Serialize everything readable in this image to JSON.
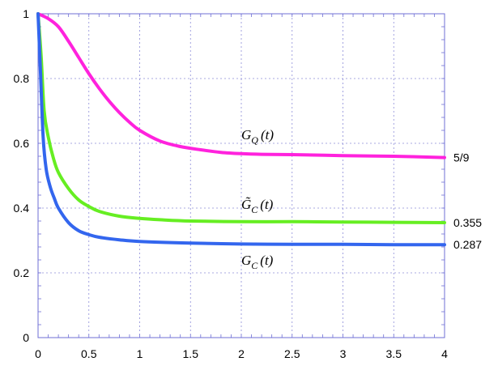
{
  "chart_data": {
    "type": "line",
    "title": "",
    "xlabel": "",
    "ylabel": "",
    "xlim": [
      0,
      4
    ],
    "ylim": [
      0,
      1
    ],
    "grid": true,
    "x_ticks": [
      "0",
      "0.5",
      "1",
      "1.5",
      "2",
      "2.5",
      "3",
      "3.5",
      "4"
    ],
    "y_ticks": [
      "0",
      "0.2",
      "0.4",
      "0.6",
      "0.8",
      "1"
    ],
    "series": [
      {
        "label": "G_Q(t)",
        "color": "#ff22dd",
        "end_label": "5/9",
        "x": [
          0,
          0.1,
          0.2,
          0.3,
          0.4,
          0.5,
          0.6,
          0.7,
          0.8,
          0.9,
          1.0,
          1.2,
          1.4,
          1.6,
          1.8,
          2.0,
          2.2,
          2.5,
          3.0,
          3.5,
          4.0
        ],
        "y": [
          1.0,
          0.985,
          0.96,
          0.915,
          0.865,
          0.815,
          0.77,
          0.73,
          0.695,
          0.665,
          0.64,
          0.607,
          0.59,
          0.58,
          0.572,
          0.568,
          0.566,
          0.565,
          0.562,
          0.56,
          0.556
        ]
      },
      {
        "label": "G̃_C(t)",
        "color": "#66ee22",
        "end_label": "0.355",
        "x": [
          0,
          0.03,
          0.06,
          0.1,
          0.15,
          0.2,
          0.3,
          0.4,
          0.5,
          0.6,
          0.8,
          1.0,
          1.2,
          1.5,
          2.0,
          2.5,
          3.0,
          3.5,
          4.0
        ],
        "y": [
          1.0,
          0.87,
          0.7,
          0.62,
          0.555,
          0.51,
          0.46,
          0.425,
          0.405,
          0.39,
          0.375,
          0.368,
          0.364,
          0.36,
          0.358,
          0.358,
          0.357,
          0.356,
          0.355
        ]
      },
      {
        "label": "G_C(t)",
        "color": "#3366ee",
        "end_label": "0.287",
        "x": [
          0,
          0.02,
          0.05,
          0.08,
          0.12,
          0.16,
          0.2,
          0.3,
          0.4,
          0.5,
          0.6,
          0.8,
          1.0,
          1.5,
          2.0,
          2.5,
          3.0,
          3.5,
          4.0
        ],
        "y": [
          1.0,
          0.85,
          0.62,
          0.52,
          0.465,
          0.43,
          0.4,
          0.355,
          0.33,
          0.318,
          0.31,
          0.302,
          0.297,
          0.292,
          0.289,
          0.288,
          0.288,
          0.287,
          0.287
        ]
      }
    ]
  },
  "annotations": {
    "g_q": {
      "main": "G",
      "sub": "Q",
      "arg": "(t)"
    },
    "g_c_tilde": {
      "main": "G̃",
      "sub": "C",
      "arg": "(t)"
    },
    "g_c": {
      "main": "G",
      "sub": "C",
      "arg": "(t)"
    }
  }
}
